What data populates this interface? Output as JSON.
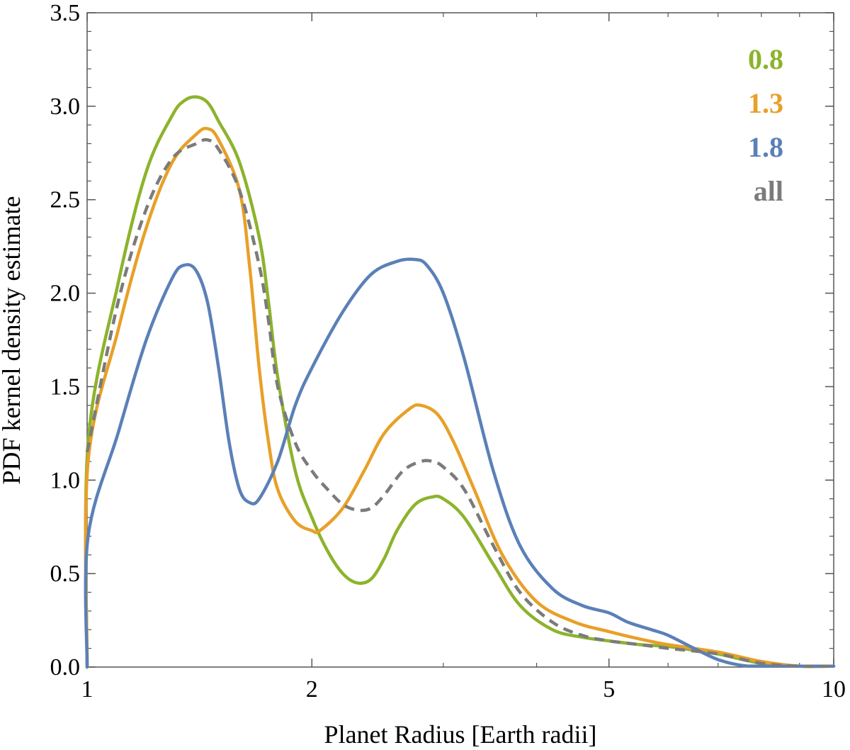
{
  "chart_data": {
    "type": "line",
    "xlabel": "Planet Radius [Earth radii]",
    "ylabel": "PDF kernel density estimate",
    "xscale": "log",
    "xlim": [
      1,
      10
    ],
    "ylim": [
      0,
      3.5
    ],
    "xticks": [
      1,
      2,
      5,
      10
    ],
    "xtick_labels": [
      "1",
      "2",
      "5",
      "10"
    ],
    "yticks": [
      0,
      0.5,
      1.0,
      1.5,
      2.0,
      2.5,
      3.0,
      3.5
    ],
    "ytick_labels": [
      "0.0",
      "0.5",
      "1.0",
      "1.5",
      "2.0",
      "2.5",
      "3.0",
      "3.5"
    ],
    "grid": false,
    "legend_position": "top-right",
    "series": [
      {
        "name": "0.8",
        "color": "#8db32c",
        "dash": false,
        "points": [
          [
            1.0,
            0.0
          ],
          [
            1.003,
            1.2
          ],
          [
            1.1,
            2.05
          ],
          [
            1.2,
            2.65
          ],
          [
            1.3,
            2.95
          ],
          [
            1.35,
            3.03
          ],
          [
            1.4,
            3.05
          ],
          [
            1.45,
            3.02
          ],
          [
            1.5,
            2.92
          ],
          [
            1.6,
            2.7
          ],
          [
            1.7,
            2.3
          ],
          [
            1.75,
            1.95
          ],
          [
            1.8,
            1.55
          ],
          [
            1.9,
            1.05
          ],
          [
            2.0,
            0.8
          ],
          [
            2.1,
            0.62
          ],
          [
            2.2,
            0.5
          ],
          [
            2.3,
            0.45
          ],
          [
            2.4,
            0.47
          ],
          [
            2.5,
            0.58
          ],
          [
            2.6,
            0.73
          ],
          [
            2.75,
            0.87
          ],
          [
            2.9,
            0.91
          ],
          [
            3.0,
            0.9
          ],
          [
            3.2,
            0.8
          ],
          [
            3.5,
            0.55
          ],
          [
            3.8,
            0.33
          ],
          [
            4.2,
            0.2
          ],
          [
            4.6,
            0.16
          ],
          [
            5.0,
            0.14
          ],
          [
            5.5,
            0.12
          ],
          [
            6.0,
            0.11
          ],
          [
            6.5,
            0.09
          ],
          [
            7.0,
            0.07
          ],
          [
            8.0,
            0.02
          ],
          [
            9.0,
            0.005
          ],
          [
            10.0,
            0.005
          ]
        ]
      },
      {
        "name": "1.3",
        "color": "#e8a028",
        "dash": false,
        "points": [
          [
            1.0,
            0.0
          ],
          [
            1.003,
            1.1
          ],
          [
            1.1,
            1.8
          ],
          [
            1.2,
            2.35
          ],
          [
            1.3,
            2.7
          ],
          [
            1.4,
            2.85
          ],
          [
            1.45,
            2.88
          ],
          [
            1.5,
            2.82
          ],
          [
            1.6,
            2.55
          ],
          [
            1.65,
            2.15
          ],
          [
            1.7,
            1.6
          ],
          [
            1.75,
            1.2
          ],
          [
            1.8,
            0.95
          ],
          [
            1.9,
            0.78
          ],
          [
            2.0,
            0.73
          ],
          [
            2.05,
            0.73
          ],
          [
            2.2,
            0.85
          ],
          [
            2.35,
            1.05
          ],
          [
            2.5,
            1.25
          ],
          [
            2.7,
            1.38
          ],
          [
            2.8,
            1.4
          ],
          [
            2.95,
            1.35
          ],
          [
            3.1,
            1.2
          ],
          [
            3.3,
            0.95
          ],
          [
            3.6,
            0.6
          ],
          [
            4.0,
            0.35
          ],
          [
            4.5,
            0.24
          ],
          [
            5.0,
            0.19
          ],
          [
            5.5,
            0.15
          ],
          [
            6.0,
            0.12
          ],
          [
            7.0,
            0.08
          ],
          [
            8.0,
            0.03
          ],
          [
            9.0,
            0.005
          ],
          [
            10.0,
            0.005
          ]
        ]
      },
      {
        "name": "1.8",
        "color": "#5b80b8",
        "dash": false,
        "points": [
          [
            1.0,
            0.0
          ],
          [
            1.003,
            0.7
          ],
          [
            1.1,
            1.25
          ],
          [
            1.2,
            1.75
          ],
          [
            1.3,
            2.08
          ],
          [
            1.35,
            2.15
          ],
          [
            1.4,
            2.12
          ],
          [
            1.45,
            1.95
          ],
          [
            1.5,
            1.6
          ],
          [
            1.55,
            1.2
          ],
          [
            1.6,
            0.95
          ],
          [
            1.65,
            0.88
          ],
          [
            1.7,
            0.9
          ],
          [
            1.8,
            1.1
          ],
          [
            1.9,
            1.4
          ],
          [
            2.0,
            1.6
          ],
          [
            2.2,
            1.9
          ],
          [
            2.4,
            2.1
          ],
          [
            2.6,
            2.17
          ],
          [
            2.75,
            2.18
          ],
          [
            2.85,
            2.15
          ],
          [
            3.0,
            2.0
          ],
          [
            3.2,
            1.65
          ],
          [
            3.5,
            1.05
          ],
          [
            3.8,
            0.65
          ],
          [
            4.2,
            0.42
          ],
          [
            4.6,
            0.33
          ],
          [
            5.0,
            0.29
          ],
          [
            5.3,
            0.24
          ],
          [
            5.7,
            0.2
          ],
          [
            6.0,
            0.17
          ],
          [
            6.5,
            0.1
          ],
          [
            7.0,
            0.04
          ],
          [
            7.5,
            0.01
          ],
          [
            8.0,
            0.005
          ],
          [
            10.0,
            0.005
          ]
        ]
      },
      {
        "name": "all",
        "color": "#7b7b7b",
        "dash": true,
        "points": [
          [
            1.0,
            1.15
          ],
          [
            1.1,
            1.95
          ],
          [
            1.2,
            2.45
          ],
          [
            1.3,
            2.72
          ],
          [
            1.4,
            2.8
          ],
          [
            1.45,
            2.82
          ],
          [
            1.5,
            2.77
          ],
          [
            1.6,
            2.55
          ],
          [
            1.7,
            2.15
          ],
          [
            1.75,
            1.85
          ],
          [
            1.8,
            1.5
          ],
          [
            1.9,
            1.2
          ],
          [
            2.0,
            1.05
          ],
          [
            2.1,
            0.95
          ],
          [
            2.2,
            0.87
          ],
          [
            2.3,
            0.84
          ],
          [
            2.4,
            0.85
          ],
          [
            2.5,
            0.92
          ],
          [
            2.65,
            1.05
          ],
          [
            2.8,
            1.1
          ],
          [
            2.9,
            1.1
          ],
          [
            3.0,
            1.07
          ],
          [
            3.2,
            0.95
          ],
          [
            3.5,
            0.65
          ],
          [
            3.8,
            0.4
          ],
          [
            4.2,
            0.24
          ],
          [
            4.6,
            0.17
          ],
          [
            5.0,
            0.14
          ],
          [
            5.5,
            0.12
          ],
          [
            6.0,
            0.1
          ],
          [
            7.0,
            0.07
          ],
          [
            8.0,
            0.02
          ],
          [
            9.0,
            0.005
          ],
          [
            10.0,
            0.005
          ]
        ]
      }
    ]
  }
}
